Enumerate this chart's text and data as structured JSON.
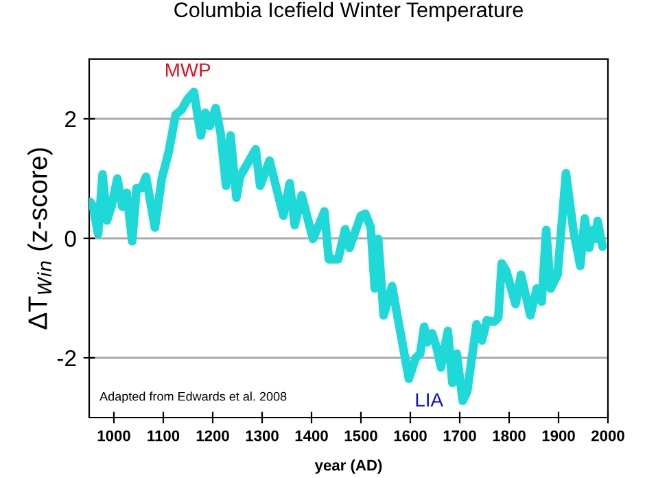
{
  "chart_data": {
    "type": "line",
    "title": "Columbia Icefield Winter Temperature",
    "xlabel": "year (AD)",
    "ylabel": "ΔT$_{Win}$ (z-score)",
    "xlim": [
      950,
      2000
    ],
    "xticks": [
      1000,
      1100,
      1200,
      1300,
      1400,
      1500,
      1600,
      1700,
      1800,
      1900,
      2000
    ],
    "ylim": [
      -3,
      3
    ],
    "yticks": [
      -2,
      0,
      2
    ],
    "grid": "y",
    "marker": "none",
    "line_style": "solid",
    "annotations": [
      "MWP",
      "LIA",
      "Adapted from Edwards et al. 2008"
    ],
    "series": [
      {
        "color": "#1fd8d8",
        "x": [
          952,
          958,
          968,
          977,
          986,
          995,
          1007,
          1017,
          1026,
          1037,
          1046,
          1056,
          1065,
          1083,
          1097,
          1111,
          1125,
          1137,
          1150,
          1162,
          1176,
          1185,
          1194,
          1206,
          1216,
          1227,
          1236,
          1248,
          1255,
          1287,
          1296,
          1315,
          1343,
          1356,
          1366,
          1380,
          1403,
          1426,
          1435,
          1454,
          1468,
          1477,
          1500,
          1509,
          1520,
          1528,
          1535,
          1546,
          1563,
          1597,
          1611,
          1620,
          1628,
          1634,
          1644,
          1653,
          1662,
          1676,
          1685,
          1694,
          1706,
          1715,
          1734,
          1745,
          1755,
          1769,
          1778,
          1785,
          1794,
          1813,
          1824,
          1843,
          1856,
          1866,
          1875,
          1884,
          1898,
          1915,
          1930,
          1944,
          1953,
          1962,
          1969,
          1976,
          1979,
          1989
        ],
        "values": [
          0.61,
          0.53,
          0.07,
          1.07,
          0.3,
          0.53,
          1.0,
          0.53,
          0.76,
          -0.05,
          0.84,
          0.84,
          1.03,
          0.18,
          1.0,
          1.45,
          2.07,
          2.15,
          2.34,
          2.45,
          1.72,
          2.1,
          1.88,
          2.18,
          1.76,
          0.88,
          1.72,
          0.68,
          1.03,
          1.49,
          0.88,
          1.3,
          0.38,
          0.92,
          0.22,
          0.72,
          -0.01,
          0.45,
          -0.35,
          -0.35,
          0.15,
          -0.16,
          0.38,
          0.41,
          0.18,
          -0.84,
          -0.01,
          -1.29,
          -0.8,
          -2.35,
          -2.0,
          -1.93,
          -1.48,
          -1.74,
          -1.59,
          -1.82,
          -2.16,
          -1.55,
          -2.42,
          -1.93,
          -2.72,
          -2.57,
          -1.44,
          -1.71,
          -1.37,
          -1.4,
          -1.33,
          -0.42,
          -0.54,
          -1.1,
          -0.61,
          -1.29,
          -0.84,
          -1.06,
          0.14,
          -0.84,
          -0.61,
          1.09,
          0.14,
          -0.46,
          0.33,
          -0.16,
          0.14,
          -0.01,
          0.29,
          -0.14
        ]
      }
    ]
  }
}
